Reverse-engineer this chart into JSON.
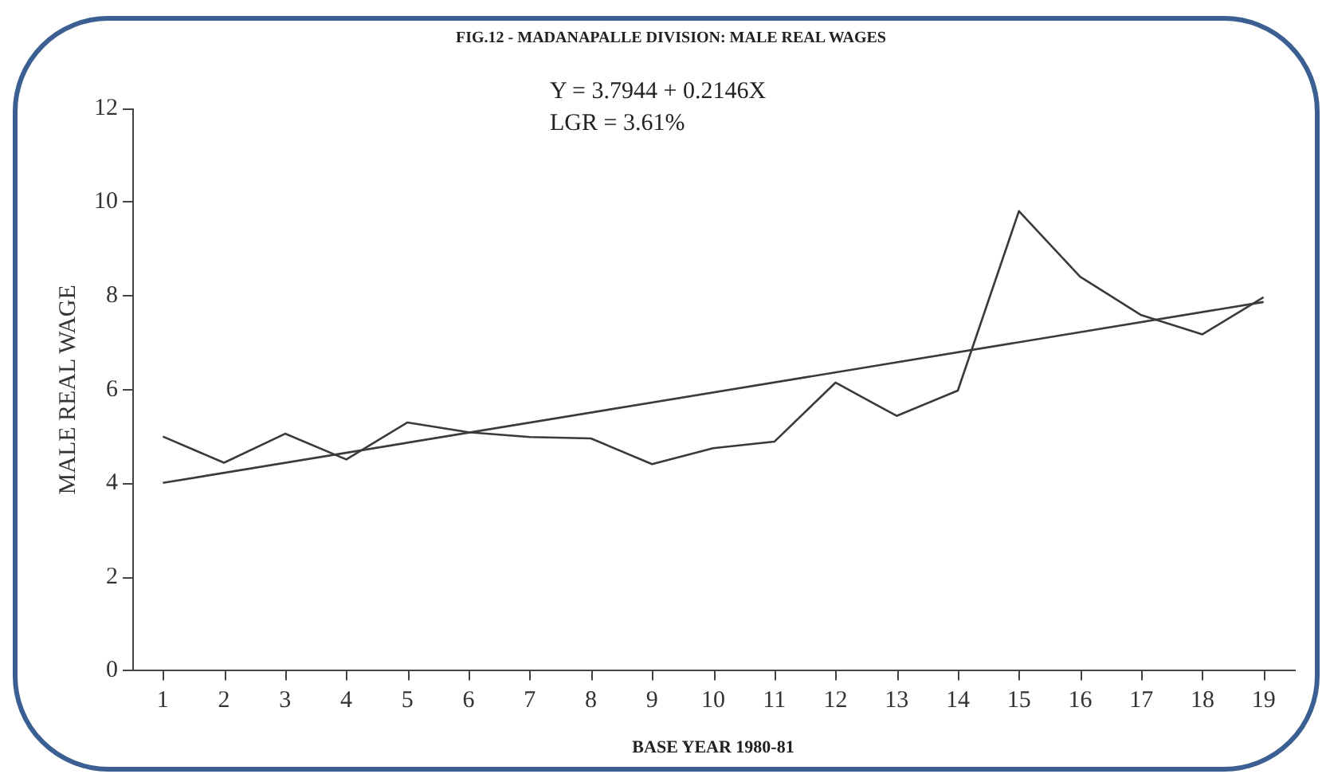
{
  "chart_data": {
    "type": "line",
    "title": "FIG.12 - MADANAPALLE DIVISION: MALE REAL WAGES",
    "xlabel": "BASE YEAR 1980-81",
    "ylabel": "MALE REAL WAGE",
    "x": [
      1,
      2,
      3,
      4,
      5,
      6,
      7,
      8,
      9,
      10,
      11,
      12,
      13,
      14,
      15,
      16,
      17,
      18,
      19
    ],
    "series": [
      {
        "color": "#3a3a3a",
        "values": [
          5.0,
          4.44,
          5.06,
          4.51,
          5.3,
          5.09,
          4.99,
          4.96,
          4.41,
          4.75,
          4.89,
          6.15,
          5.44,
          5.98,
          9.81,
          8.41,
          7.59,
          7.18,
          7.97
        ]
      },
      {
        "type": "line",
        "color": "#3a3a3a",
        "x": [
          1,
          19
        ],
        "values": [
          4.01,
          7.87
        ]
      }
    ],
    "annotations": [
      "Y = 3.7944 + 0.2146X",
      "LGR = 3.61%"
    ],
    "xlim": [
      0.5,
      19.5
    ],
    "xticks": [
      1,
      2,
      3,
      4,
      5,
      6,
      7,
      8,
      9,
      10,
      11,
      12,
      13,
      14,
      15,
      16,
      17,
      18,
      19
    ],
    "ylim": [
      0,
      12
    ],
    "yticks": [
      0,
      2,
      4,
      6,
      8,
      10,
      12
    ],
    "grid": false,
    "legend": false,
    "marker": "none",
    "line_style": "solid"
  }
}
